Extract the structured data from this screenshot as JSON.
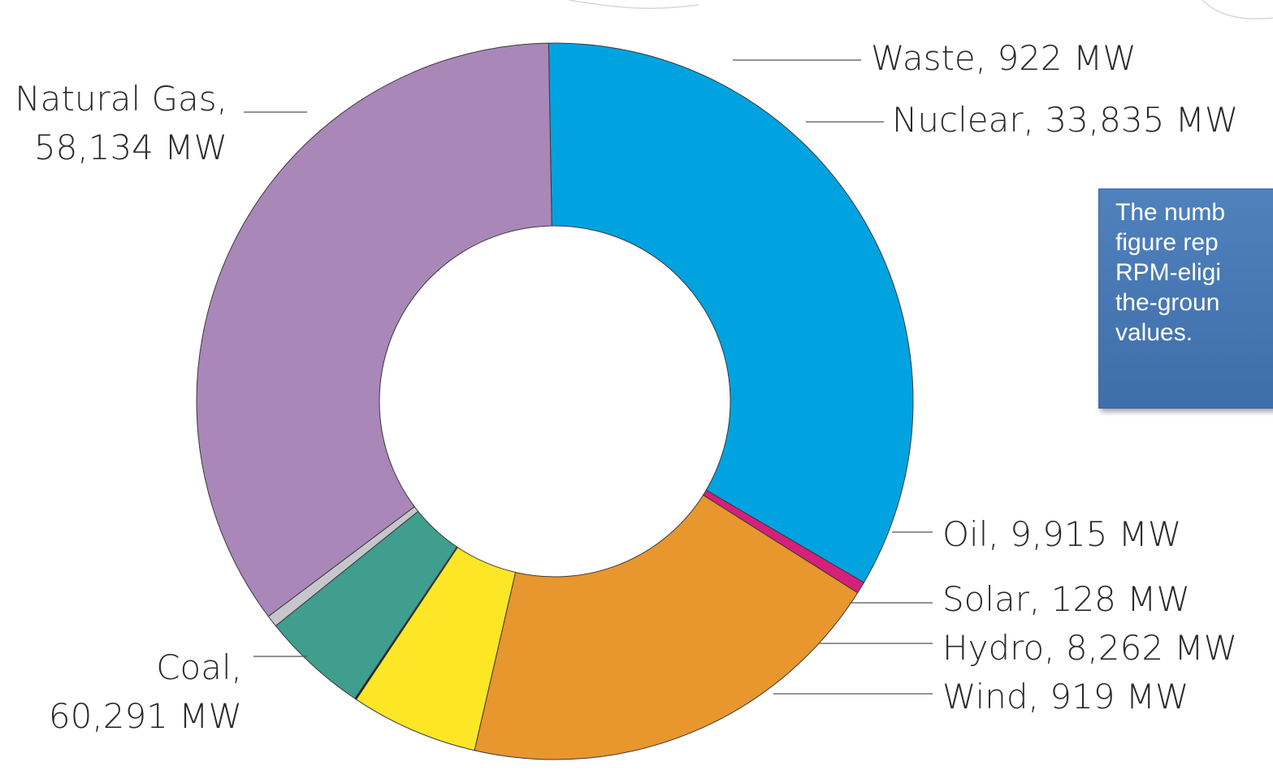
{
  "chart_data": {
    "type": "pie",
    "donut": true,
    "unit": "MW",
    "title": "",
    "slices": [
      {
        "name": "Natural Gas",
        "value": 58134,
        "color": "#00a3e0",
        "label_lines": [
          "Natural Gas,",
          "58,134 MW"
        ]
      },
      {
        "name": "Waste",
        "value": 922,
        "color": "#d6207a",
        "label_lines": [
          "Waste, 922 MW"
        ]
      },
      {
        "name": "Nuclear",
        "value": 33835,
        "color": "#e8962e",
        "label_lines": [
          "Nuclear, 33,835 MW"
        ]
      },
      {
        "name": "Oil",
        "value": 9915,
        "color": "#fce626",
        "label_lines": [
          "Oil, 9,915 MW"
        ]
      },
      {
        "name": "Solar",
        "value": 128,
        "color": "#1a1a1a",
        "label_lines": [
          "Solar, 128 MW"
        ]
      },
      {
        "name": "Hydro",
        "value": 8262,
        "color": "#3f9e8e",
        "label_lines": [
          "Hydro, 8,262 MW"
        ]
      },
      {
        "name": "Wind",
        "value": 919,
        "color": "#c6c6cc",
        "label_lines": [
          "Wind, 919 MW"
        ]
      },
      {
        "name": "Coal",
        "value": 60291,
        "color": "#a987b9",
        "label_lines": [
          "Coal,",
          "60,291 MW"
        ]
      }
    ]
  },
  "note": {
    "text": "The numb\nfigure rep\nRPM-eligi\nthe-groun\nvalues."
  }
}
